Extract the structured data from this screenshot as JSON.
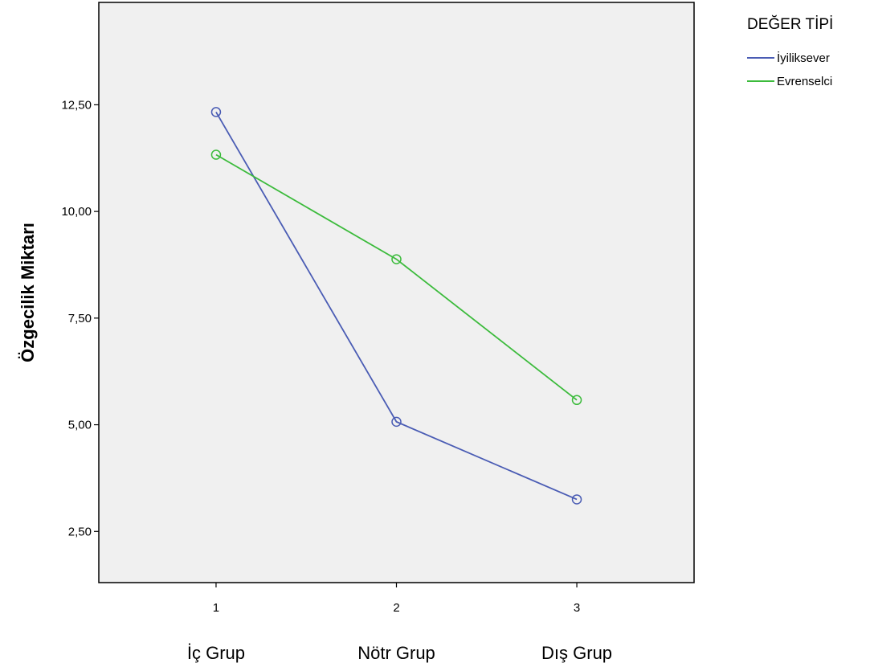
{
  "chart_data": {
    "type": "line",
    "x_ticks": [
      "1",
      "2",
      "3"
    ],
    "categories": [
      "İç Grup",
      "Nötr Grup",
      "Dış Grup"
    ],
    "ylabel": "Özgecilik Miktarı",
    "y_ticks": [
      "2,50",
      "5,00",
      "7,50",
      "10,00",
      "12,50"
    ],
    "y_tick_values": [
      2.5,
      5.0,
      7.5,
      10.0,
      12.5
    ],
    "ylim": [
      1.3,
      14.9
    ],
    "xlim": [
      0.35,
      3.65
    ],
    "grid": false,
    "legend": {
      "title": "DEĞER TİPİ",
      "placement": "top-right-outside"
    },
    "series": [
      {
        "name": "İyiliksever",
        "color": "#4a5cb4",
        "values": [
          12.33,
          5.07,
          3.25
        ]
      },
      {
        "name": "Evrenselci",
        "color": "#3cbb3c",
        "values": [
          11.33,
          8.88,
          5.58
        ]
      }
    ],
    "plot_background": "#f0f0f0"
  }
}
